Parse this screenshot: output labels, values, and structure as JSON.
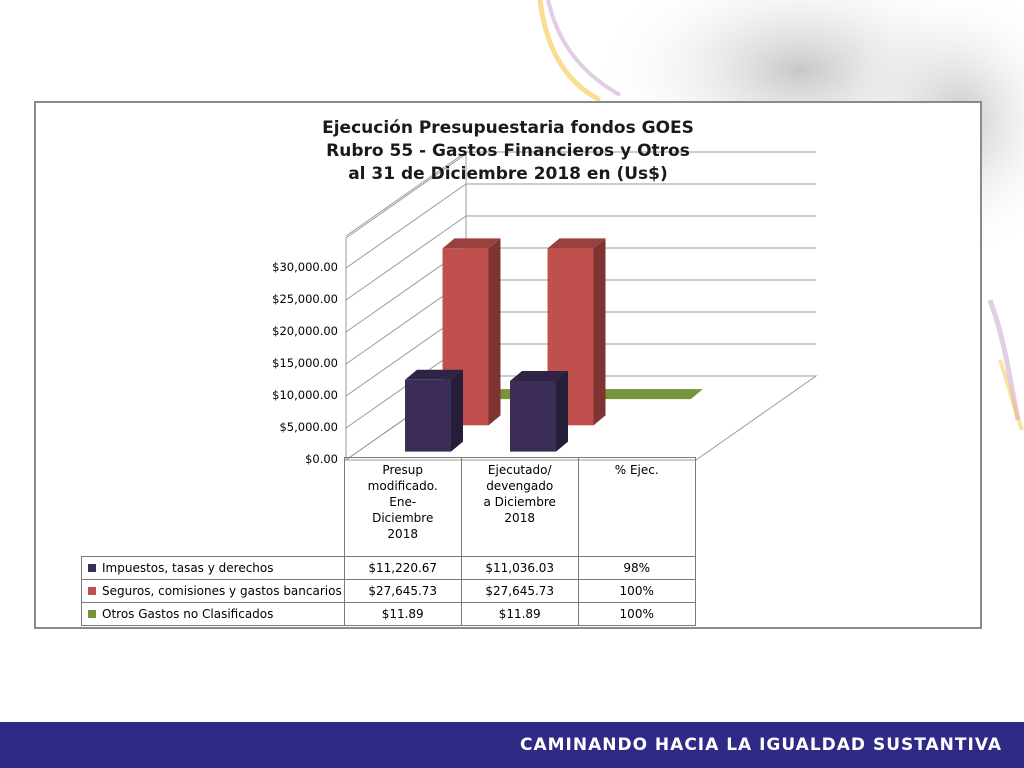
{
  "colors": {
    "impuestos": "#3b2d56",
    "seguros": "#c0504d",
    "otros": "#77933c",
    "footer": "#2e2a86"
  },
  "footer": {
    "text": "CAMINANDO HACIA LA IGUALDAD SUSTANTIVA"
  },
  "chart_data": {
    "type": "bar",
    "title_lines": [
      "Ejecución Presupuestaria fondos GOES",
      "Rubro 55 - Gastos Financieros y Otros",
      "al 31 de Diciembre 2018 en (Us$)"
    ],
    "categories": [
      [
        "Presup",
        "modificado.",
        "Ene-",
        "Diciembre",
        "2018"
      ],
      [
        "Ejecutado/",
        "devengado",
        "a Diciembre",
        "2018"
      ],
      [
        "% Ejec."
      ]
    ],
    "series": [
      {
        "name": "Impuestos, tasas y derechos",
        "values": [
          11220.67,
          11036.03,
          0.98
        ],
        "labels": [
          "$11,220.67",
          "$11,036.03",
          "98%"
        ]
      },
      {
        "name": "Seguros, comisiones y gastos bancarios",
        "values": [
          27645.73,
          27645.73,
          1
        ],
        "labels": [
          "$27,645.73",
          "$27,645.73",
          "100%"
        ]
      },
      {
        "name": "Otros Gastos no Clasificados",
        "values": [
          11.89,
          11.89,
          1
        ],
        "labels": [
          "$11.89",
          "$11.89",
          "100%"
        ]
      }
    ],
    "y_ticks": [
      "$0.00",
      "$5,000.00",
      "$10,000.00",
      "$15,000.00",
      "$20,000.00",
      "$25,000.00",
      "$30,000.00"
    ],
    "ylim": [
      0,
      30000
    ],
    "legend": "table-below",
    "grid": true
  }
}
